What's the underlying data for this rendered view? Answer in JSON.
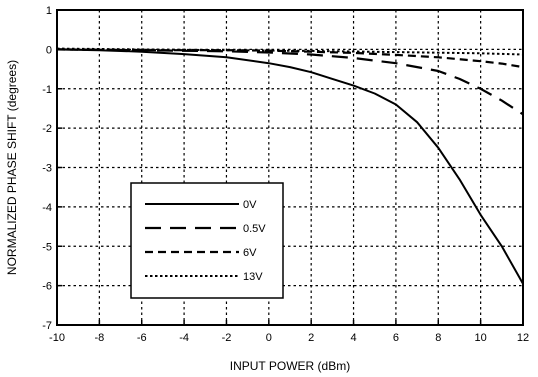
{
  "chart_data": {
    "type": "line",
    "title": "",
    "xlabel": "INPUT POWER (dBm)",
    "ylabel": "NORMALIZED PHASE SHIFT (degrees)",
    "xlim": [
      -10,
      12
    ],
    "ylim": [
      -7,
      1
    ],
    "xticks": [
      -10,
      -8,
      -6,
      -4,
      -2,
      0,
      2,
      4,
      6,
      8,
      10,
      12
    ],
    "yticks": [
      1,
      0,
      -1,
      -2,
      -3,
      -4,
      -5,
      -6,
      -7
    ],
    "grid": true,
    "legend_position": "lower-left",
    "series": [
      {
        "name": "0V",
        "dash": "solid",
        "x": [
          -10,
          -8,
          -6,
          -4,
          -2,
          0,
          1,
          2,
          3,
          4,
          5,
          6,
          7,
          8,
          9,
          10,
          11,
          12
        ],
        "y": [
          0.0,
          -0.02,
          -0.06,
          -0.12,
          -0.2,
          -0.35,
          -0.45,
          -0.58,
          -0.75,
          -0.92,
          -1.12,
          -1.4,
          -1.85,
          -2.5,
          -3.3,
          -4.2,
          -5.0,
          -5.95
        ]
      },
      {
        "name": "0.5V",
        "dash": "long-dash",
        "x": [
          -10,
          -6,
          -2,
          0,
          2,
          4,
          6,
          8,
          9,
          10,
          11,
          12
        ],
        "y": [
          0.0,
          -0.02,
          -0.05,
          -0.08,
          -0.13,
          -0.22,
          -0.35,
          -0.55,
          -0.75,
          -1.0,
          -1.3,
          -1.65
        ]
      },
      {
        "name": "6V",
        "dash": "dash",
        "x": [
          -10,
          -6,
          -2,
          0,
          2,
          4,
          6,
          8,
          10,
          11,
          12
        ],
        "y": [
          0.0,
          -0.02,
          -0.02,
          -0.03,
          -0.06,
          -0.09,
          -0.14,
          -0.2,
          -0.3,
          -0.36,
          -0.45
        ]
      },
      {
        "name": "13V",
        "dash": "dot",
        "x": [
          -10,
          -6,
          -2,
          2,
          6,
          10,
          12
        ],
        "y": [
          0.02,
          0.0,
          -0.02,
          -0.04,
          -0.07,
          -0.1,
          -0.13
        ]
      }
    ]
  }
}
